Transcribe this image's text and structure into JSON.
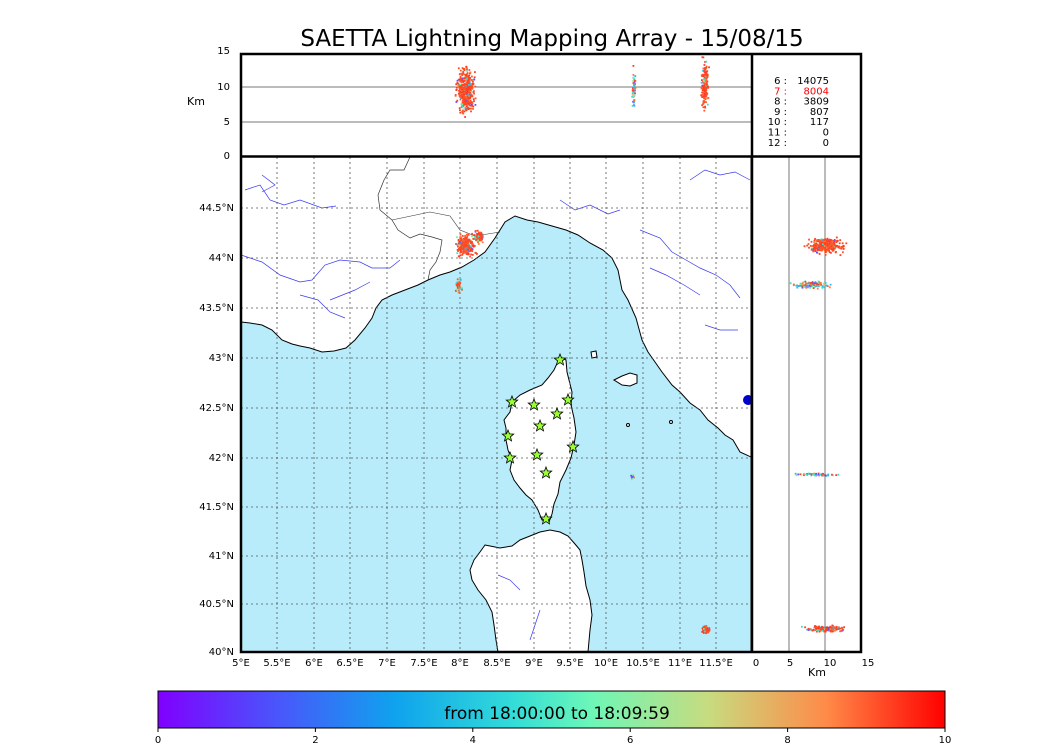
{
  "title": "SAETTA Lightning Mapping Array - 15/08/15",
  "top_panel": {
    "ylabel": "Km",
    "yticks": [
      "15",
      "10",
      "5",
      "0"
    ],
    "stats": [
      {
        "label": "6 :",
        "value": "14075",
        "color": "#000000"
      },
      {
        "label": "7 :",
        "value": "8004",
        "color": "#ff0000"
      },
      {
        "label": "8 :",
        "value": "3809",
        "color": "#000000"
      },
      {
        "label": "9 :",
        "value": "807",
        "color": "#000000"
      },
      {
        "label": "10 :",
        "value": "117",
        "color": "#000000"
      },
      {
        "label": "11 :",
        "value": "0",
        "color": "#000000"
      },
      {
        "label": "12 :",
        "value": "0",
        "color": "#000000"
      }
    ]
  },
  "map": {
    "lat_ticks": [
      "44.5°N",
      "44°N",
      "43.5°N",
      "43°N",
      "42.5°N",
      "42°N",
      "41.5°N",
      "41°N",
      "40.5°N",
      "40°N"
    ],
    "lon_ticks": [
      "5°E",
      "5.5°E",
      "6°E",
      "6.5°E",
      "7°E",
      "7.5°E",
      "8°E",
      "8.5°E",
      "9°E",
      "9.5°E",
      "10°E",
      "10.5°E",
      "11°E",
      "11.5°E"
    ],
    "sea_color": "#b8ecfb",
    "land_color": "#ffffff",
    "station_color": "#99ff33"
  },
  "side_panel": {
    "xticks": [
      "0",
      "5",
      "10",
      "15"
    ],
    "xlabel": "Km"
  },
  "colorbar": {
    "label": "from 18:00:00 to 18:09:59",
    "ticks": [
      "0",
      "2",
      "4",
      "6",
      "8",
      "10"
    ]
  }
}
